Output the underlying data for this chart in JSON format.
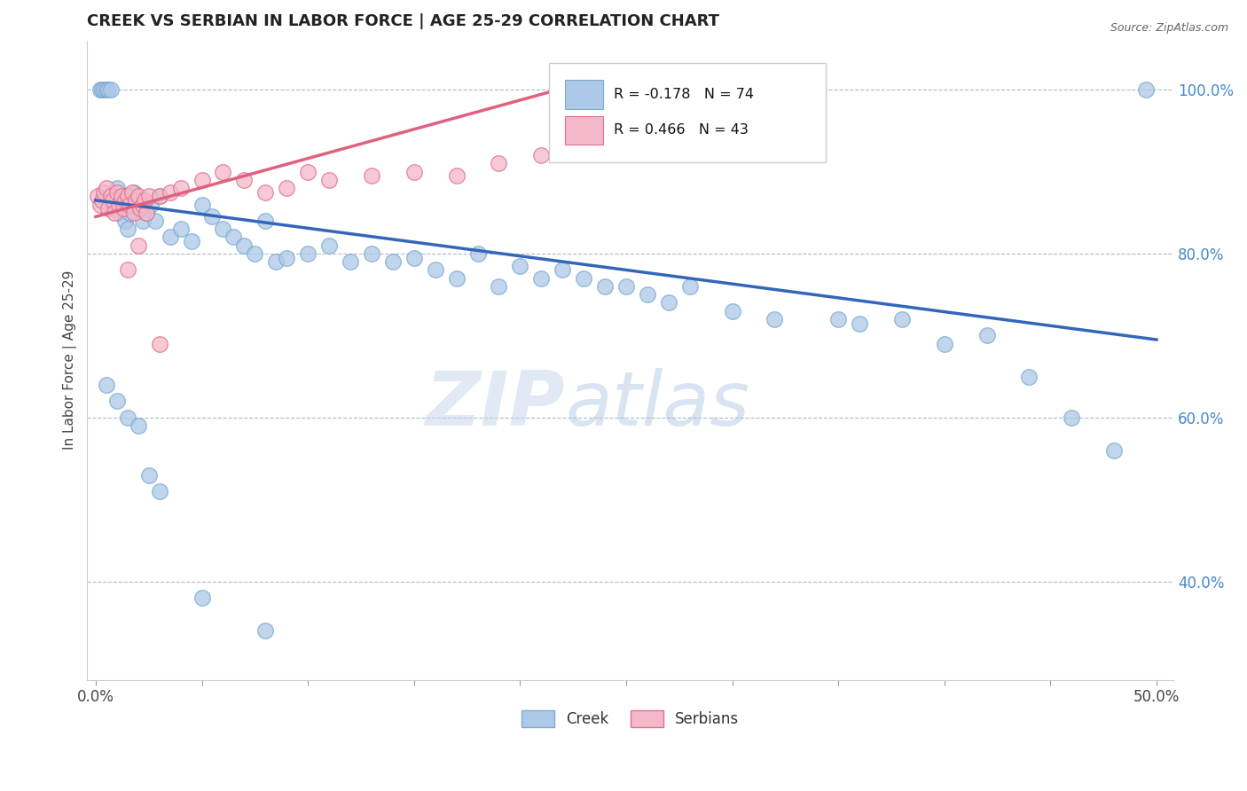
{
  "title": "CREEK VS SERBIAN IN LABOR FORCE | AGE 25-29 CORRELATION CHART",
  "source": "Source: ZipAtlas.com",
  "ylabel": "In Labor Force | Age 25-29",
  "xlim": [
    0.0,
    0.5
  ],
  "ylim": [
    0.28,
    1.06
  ],
  "yticks": [
    0.4,
    0.6,
    0.8,
    1.0
  ],
  "yticklabels_right": [
    "40.0%",
    "60.0%",
    "80.0%",
    "100.0%"
  ],
  "legend_creek_R": "-0.178",
  "legend_creek_N": "74",
  "legend_serbian_R": "0.466",
  "legend_serbian_N": "43",
  "creek_color": "#adc9e8",
  "creek_edge_color": "#7aaad0",
  "serbian_color": "#f5b8c8",
  "serbian_edge_color": "#e07090",
  "creek_line_color": "#3366bb",
  "serbian_line_color": "#e06080",
  "watermark_zip": "ZIP",
  "watermark_atlas": "atlas",
  "creek_line_y0": 0.865,
  "creek_line_y1": 0.695,
  "serbian_line_y0": 0.845,
  "serbian_line_y1": 1.005,
  "serbian_line_x1": 0.225,
  "creek_scatter_x": [
    0.002,
    0.003,
    0.004,
    0.005,
    0.006,
    0.007,
    0.008,
    0.009,
    0.01,
    0.011,
    0.012,
    0.013,
    0.014,
    0.015,
    0.016,
    0.017,
    0.018,
    0.019,
    0.02,
    0.022,
    0.024,
    0.026,
    0.028,
    0.03,
    0.035,
    0.04,
    0.045,
    0.05,
    0.055,
    0.06,
    0.065,
    0.07,
    0.075,
    0.08,
    0.085,
    0.09,
    0.1,
    0.11,
    0.12,
    0.13,
    0.14,
    0.15,
    0.16,
    0.17,
    0.18,
    0.19,
    0.2,
    0.21,
    0.22,
    0.23,
    0.24,
    0.25,
    0.26,
    0.27,
    0.28,
    0.3,
    0.32,
    0.35,
    0.36,
    0.38,
    0.4,
    0.42,
    0.44,
    0.46,
    0.48,
    0.495,
    0.005,
    0.01,
    0.015,
    0.02,
    0.025,
    0.03,
    0.05,
    0.08
  ],
  "creek_scatter_y": [
    1.0,
    1.0,
    1.0,
    1.0,
    1.0,
    1.0,
    0.86,
    0.87,
    0.88,
    0.85,
    0.87,
    0.86,
    0.84,
    0.83,
    0.85,
    0.86,
    0.875,
    0.865,
    0.855,
    0.84,
    0.85,
    0.86,
    0.84,
    0.87,
    0.82,
    0.83,
    0.815,
    0.86,
    0.845,
    0.83,
    0.82,
    0.81,
    0.8,
    0.84,
    0.79,
    0.795,
    0.8,
    0.81,
    0.79,
    0.8,
    0.79,
    0.795,
    0.78,
    0.77,
    0.8,
    0.76,
    0.785,
    0.77,
    0.78,
    0.77,
    0.76,
    0.76,
    0.75,
    0.74,
    0.76,
    0.73,
    0.72,
    0.72,
    0.715,
    0.72,
    0.69,
    0.7,
    0.65,
    0.6,
    0.56,
    1.0,
    0.64,
    0.62,
    0.6,
    0.59,
    0.53,
    0.51,
    0.38,
    0.34
  ],
  "serbian_scatter_x": [
    0.001,
    0.002,
    0.003,
    0.004,
    0.005,
    0.006,
    0.007,
    0.008,
    0.009,
    0.01,
    0.011,
    0.012,
    0.013,
    0.014,
    0.015,
    0.016,
    0.017,
    0.018,
    0.019,
    0.02,
    0.021,
    0.022,
    0.023,
    0.024,
    0.025,
    0.03,
    0.035,
    0.04,
    0.05,
    0.06,
    0.07,
    0.08,
    0.09,
    0.1,
    0.11,
    0.13,
    0.15,
    0.17,
    0.19,
    0.21,
    0.015,
    0.02,
    0.03
  ],
  "serbian_scatter_y": [
    0.87,
    0.86,
    0.865,
    0.875,
    0.88,
    0.855,
    0.87,
    0.865,
    0.85,
    0.875,
    0.86,
    0.87,
    0.855,
    0.865,
    0.87,
    0.86,
    0.875,
    0.85,
    0.865,
    0.87,
    0.855,
    0.86,
    0.865,
    0.85,
    0.87,
    0.87,
    0.875,
    0.88,
    0.89,
    0.9,
    0.89,
    0.875,
    0.88,
    0.9,
    0.89,
    0.895,
    0.9,
    0.895,
    0.91,
    0.92,
    0.78,
    0.81,
    0.69
  ]
}
